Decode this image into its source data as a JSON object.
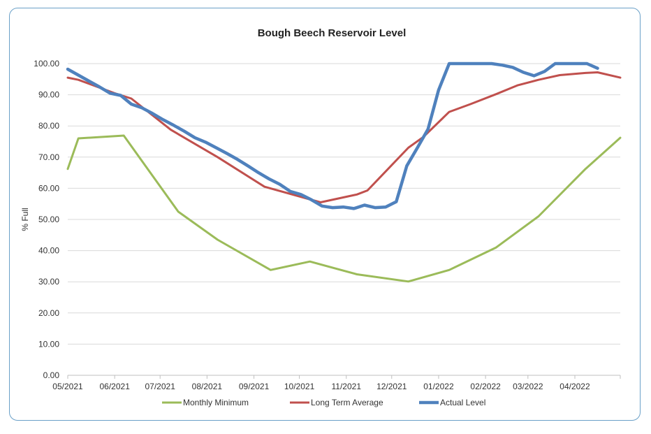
{
  "chart_data": {
    "type": "line",
    "title": "Bough Beech Reservoir Level",
    "ylabel": "% Full",
    "xlabel": "",
    "ylim": [
      0,
      100
    ],
    "yticks": [
      "0.00",
      "10.00",
      "20.00",
      "30.00",
      "40.00",
      "50.00",
      "60.00",
      "70.00",
      "80.00",
      "90.00",
      "100.00"
    ],
    "xlim": [
      "2021-05-01",
      "2022-05-01"
    ],
    "xticks": [
      "05/2021",
      "06/2021",
      "07/2021",
      "08/2021",
      "09/2021",
      "10/2021",
      "11/2021",
      "12/2021",
      "01/2022",
      "02/2022",
      "03/2022",
      "04/2022"
    ],
    "grid": true,
    "legend_position": "bottom",
    "series": [
      {
        "name": "Monthly Minimum",
        "color": "#9bbb59",
        "points": [
          [
            "2021-05-01",
            66.2
          ],
          [
            "2021-05-08",
            76.0
          ],
          [
            "2021-06-07",
            76.9
          ],
          [
            "2021-07-13",
            52.5
          ],
          [
            "2021-08-08",
            43.5
          ],
          [
            "2021-09-12",
            33.8
          ],
          [
            "2021-10-08",
            36.5
          ],
          [
            "2021-11-08",
            32.4
          ],
          [
            "2021-12-12",
            30.1
          ],
          [
            "2022-01-08",
            33.8
          ],
          [
            "2022-02-08",
            41.0
          ],
          [
            "2022-03-08",
            51.0
          ],
          [
            "2022-04-08",
            66.2
          ],
          [
            "2022-05-01",
            76.2
          ]
        ]
      },
      {
        "name": "Long Term Average",
        "color": "#c0504d",
        "points": [
          [
            "2021-05-01",
            95.5
          ],
          [
            "2021-05-08",
            94.8
          ],
          [
            "2021-06-01",
            90.5
          ],
          [
            "2021-06-12",
            88.8
          ],
          [
            "2021-07-08",
            78.8
          ],
          [
            "2021-08-08",
            70.0
          ],
          [
            "2021-09-08",
            60.5
          ],
          [
            "2021-10-15",
            55.5
          ],
          [
            "2021-11-08",
            58.0
          ],
          [
            "2021-11-15",
            59.3
          ],
          [
            "2021-12-12",
            73.0
          ],
          [
            "2021-12-22",
            76.5
          ],
          [
            "2022-01-08",
            84.5
          ],
          [
            "2022-01-22",
            87.0
          ],
          [
            "2022-02-08",
            90.2
          ],
          [
            "2022-02-22",
            93.0
          ],
          [
            "2022-03-08",
            94.8
          ],
          [
            "2022-03-22",
            96.3
          ],
          [
            "2022-04-08",
            97.0
          ],
          [
            "2022-04-16",
            97.2
          ],
          [
            "2022-05-01",
            95.5
          ]
        ]
      },
      {
        "name": "Actual Level",
        "color": "#4f81bd",
        "points": [
          [
            "2021-05-01",
            98.2
          ],
          [
            "2021-05-08",
            96.3
          ],
          [
            "2021-05-15",
            94.4
          ],
          [
            "2021-05-22",
            92.5
          ],
          [
            "2021-05-29",
            90.5
          ],
          [
            "2021-06-05",
            89.8
          ],
          [
            "2021-06-12",
            87.0
          ],
          [
            "2021-06-19",
            85.8
          ],
          [
            "2021-06-26",
            84.0
          ],
          [
            "2021-07-03",
            82.0
          ],
          [
            "2021-07-10",
            80.2
          ],
          [
            "2021-07-17",
            78.3
          ],
          [
            "2021-07-24",
            76.2
          ],
          [
            "2021-07-31",
            74.8
          ],
          [
            "2021-08-07",
            73.0
          ],
          [
            "2021-08-14",
            71.2
          ],
          [
            "2021-08-21",
            69.3
          ],
          [
            "2021-08-28",
            67.2
          ],
          [
            "2021-09-04",
            65.0
          ],
          [
            "2021-09-11",
            63.0
          ],
          [
            "2021-09-18",
            61.3
          ],
          [
            "2021-09-25",
            59.0
          ],
          [
            "2021-10-02",
            58.0
          ],
          [
            "2021-10-09",
            56.3
          ],
          [
            "2021-10-16",
            54.3
          ],
          [
            "2021-10-23",
            53.8
          ],
          [
            "2021-10-30",
            54.0
          ],
          [
            "2021-11-06",
            53.5
          ],
          [
            "2021-11-13",
            54.6
          ],
          [
            "2021-11-20",
            53.8
          ],
          [
            "2021-11-27",
            54.0
          ],
          [
            "2021-12-04",
            55.7
          ],
          [
            "2021-12-11",
            67.2
          ],
          [
            "2021-12-18",
            73.0
          ],
          [
            "2021-12-25",
            79.0
          ],
          [
            "2022-01-01",
            91.5
          ],
          [
            "2022-01-08",
            100.0
          ],
          [
            "2022-01-15",
            100.0
          ],
          [
            "2022-01-22",
            100.0
          ],
          [
            "2022-01-29",
            100.0
          ],
          [
            "2022-02-05",
            100.0
          ],
          [
            "2022-02-12",
            99.5
          ],
          [
            "2022-02-19",
            98.8
          ],
          [
            "2022-02-26",
            97.2
          ],
          [
            "2022-03-05",
            96.1
          ],
          [
            "2022-03-12",
            97.5
          ],
          [
            "2022-03-19",
            100.0
          ],
          [
            "2022-03-26",
            100.0
          ],
          [
            "2022-04-02",
            100.0
          ],
          [
            "2022-04-09",
            100.0
          ],
          [
            "2022-04-16",
            98.5
          ]
        ]
      }
    ]
  }
}
